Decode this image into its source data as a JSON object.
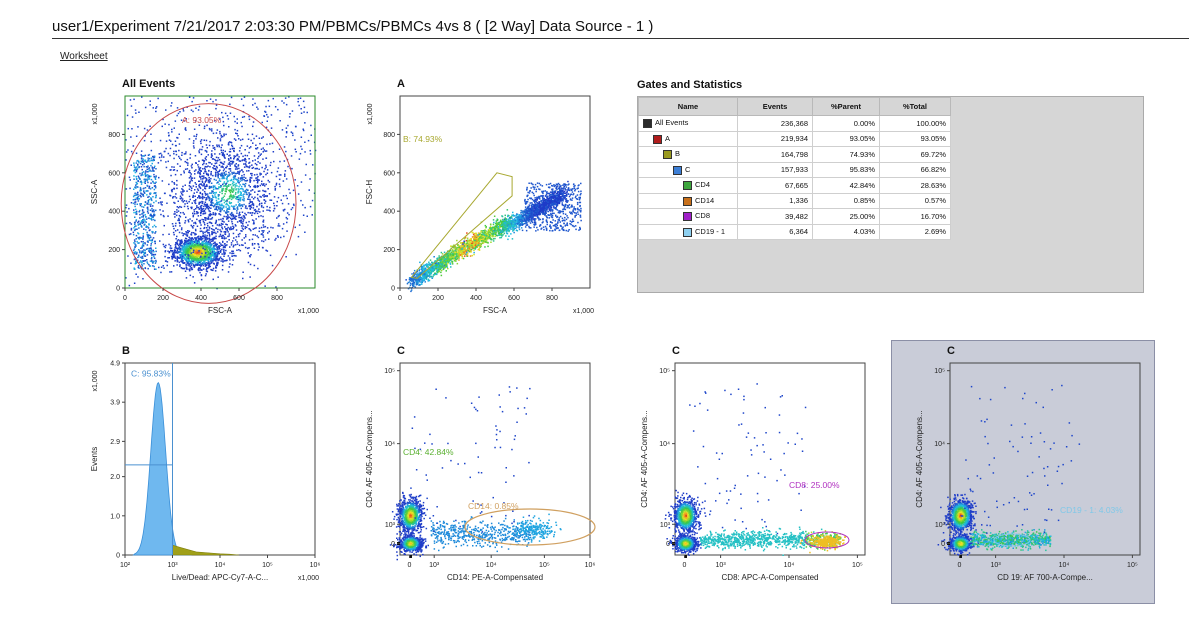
{
  "header": {
    "title": "user1/Experiment 7/21/2017 2:03:30 PM/PBMCs/PBMCs 4vs 8   ( [2 Way] Data Source - 1 )"
  },
  "worksheet_tab": "Worksheet",
  "stats_panel": {
    "title": "Gates and Statistics",
    "columns": [
      "Name",
      "Events",
      "%Parent",
      "%Total"
    ],
    "rows": [
      {
        "name": "All Events",
        "color": "#2b2b2b",
        "indent": 0,
        "events": "236,368",
        "parent": "0.00%",
        "total": "100.00%"
      },
      {
        "name": "A",
        "color": "#b01c1c",
        "indent": 1,
        "events": "219,934",
        "parent": "93.05%",
        "total": "93.05%"
      },
      {
        "name": "B",
        "color": "#9a9a20",
        "indent": 2,
        "events": "164,798",
        "parent": "74.93%",
        "total": "69.72%"
      },
      {
        "name": "C",
        "color": "#3d7fd6",
        "indent": 3,
        "events": "157,933",
        "parent": "95.83%",
        "total": "66.82%"
      },
      {
        "name": "CD4",
        "color": "#3da63d",
        "indent": 4,
        "events": "67,665",
        "parent": "42.84%",
        "total": "28.63%"
      },
      {
        "name": "CD14",
        "color": "#c8701a",
        "indent": 4,
        "events": "1,336",
        "parent": "0.85%",
        "total": "0.57%"
      },
      {
        "name": "CD8",
        "color": "#a020c8",
        "indent": 4,
        "events": "39,482",
        "parent": "25.00%",
        "total": "16.70%"
      },
      {
        "name": "CD19 - 1",
        "color": "#8ed0f0",
        "indent": 4,
        "events": "6,364",
        "parent": "4.03%",
        "total": "2.69%"
      }
    ]
  },
  "chart_data": [
    {
      "type": "scatter",
      "title": "All Events",
      "xlabel": "FSC-A",
      "ylabel": "SSC-A",
      "axis_multiplier": "x1,000",
      "xlim": [
        0,
        1000
      ],
      "ylim": [
        0,
        1000
      ],
      "xticks": [
        "0",
        "200",
        "400",
        "600",
        "800"
      ],
      "yticks": [
        "0",
        "200",
        "400",
        "600",
        "800"
      ],
      "gate": {
        "name": "A",
        "value": "A: 93.05%",
        "shape": "ellipse",
        "color": "#c84848"
      },
      "populations": [
        {
          "x": 380,
          "y": 190,
          "weight": 0.55
        },
        {
          "x": 550,
          "y": 500,
          "weight": 0.35
        },
        {
          "x": 100,
          "y": 350,
          "weight": 0.1
        }
      ]
    },
    {
      "type": "scatter",
      "title": "A",
      "xlabel": "FSC-A",
      "ylabel": "FSC-H",
      "axis_multiplier": "x1,000",
      "xlim": [
        0,
        1000
      ],
      "ylim": [
        0,
        1000
      ],
      "xticks": [
        "0",
        "200",
        "400",
        "600",
        "800"
      ],
      "yticks": [
        "0",
        "200",
        "400",
        "600",
        "800"
      ],
      "gate": {
        "name": "B",
        "value": "B: 74.93%",
        "shape": "polygon",
        "color": "#a8a830"
      }
    },
    {
      "type": "histogram",
      "title": "B",
      "xlabel": "Live/Dead: APC-Cy7-A-C...",
      "ylabel": "Events",
      "axis_multiplier": "x1,000",
      "xscale": "log",
      "xlim": [
        100,
        1000000
      ],
      "ylim": [
        0,
        4.9
      ],
      "xticks": [
        "10²",
        "10³",
        "10⁴",
        "10⁵",
        "10⁶"
      ],
      "yticks": [
        "0",
        "1.0",
        "2.0",
        "2.9",
        "3.9",
        "4.9"
      ],
      "gate": {
        "name": "C",
        "value": "C: 95.83%",
        "shape": "range",
        "color": "#4a90d0"
      },
      "peak": {
        "x": 500,
        "y": 4.4
      }
    },
    {
      "type": "scatter",
      "title": "C",
      "xlabel": "CD14: PE-A-Compensated",
      "ylabel": "CD4: AF 405-A-Compens...",
      "xscale": "biexponential",
      "yscale": "biexponential",
      "xticks": [
        "0",
        "10³",
        "10⁴",
        "10⁵",
        "10⁶"
      ],
      "yticks": [
        "0",
        "10³",
        "10⁴",
        "10⁵"
      ],
      "gates": [
        {
          "name": "CD4",
          "value": "CD4: 42.84%",
          "color": "#5ab030"
        },
        {
          "name": "CD14",
          "value": "CD14: 0.85%",
          "color": "#d0a060"
        }
      ]
    },
    {
      "type": "scatter",
      "title": "C",
      "xlabel": "CD8: APC-A-Compensated",
      "ylabel": "CD4: AF 405-A-Compens...",
      "xscale": "biexponential",
      "yscale": "biexponential",
      "xticks": [
        "0",
        "10³",
        "10⁴",
        "10⁵"
      ],
      "yticks": [
        "0",
        "10³",
        "10⁴",
        "10⁵"
      ],
      "gates": [
        {
          "name": "CD8",
          "value": "CD8: 25.00%",
          "color": "#b030c0"
        }
      ]
    },
    {
      "type": "scatter",
      "title": "C",
      "xlabel": "CD 19: AF 700-A-Compe...",
      "ylabel": "CD4: AF 405-A-Compens...",
      "xscale": "biexponential",
      "yscale": "biexponential",
      "xticks": [
        "0",
        "10³",
        "10⁴",
        "10⁵"
      ],
      "yticks": [
        "0",
        "10³",
        "10⁴",
        "10⁵"
      ],
      "gates": [
        {
          "name": "CD19 - 1",
          "value": "CD19 - 1: 4.03%",
          "color": "#80c8e8"
        }
      ]
    }
  ]
}
